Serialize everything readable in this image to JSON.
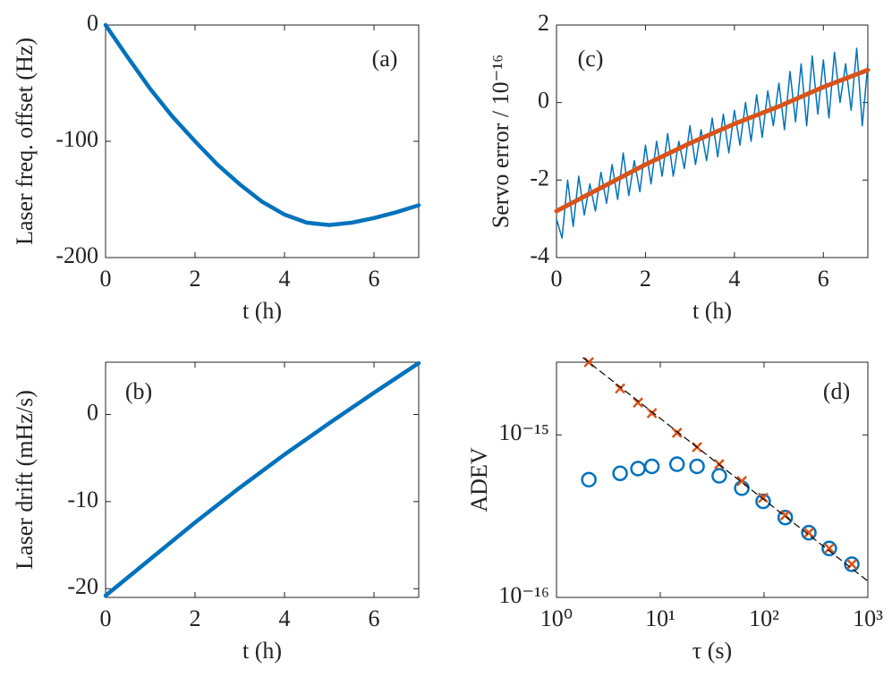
{
  "chart_data": [
    {
      "type": "line",
      "annotation": "(a)",
      "xlabel": "t (h)",
      "ylabel": "Laser freq. offset (Hz)",
      "xlim": [
        0,
        7
      ],
      "ylim": [
        -200,
        0
      ],
      "xticks": [
        0,
        2,
        4,
        6
      ],
      "yticks": [
        -200,
        -100,
        0
      ],
      "series": [
        {
          "color": "#0072bd",
          "x": [
            0,
            0.5,
            1,
            1.5,
            2,
            2.5,
            3,
            3.5,
            4,
            4.5,
            5,
            5.5,
            6,
            6.5,
            7
          ],
          "values": [
            0,
            -28,
            -55,
            -79,
            -100,
            -120,
            -137,
            -152,
            -163,
            -170,
            -172,
            -170,
            -166,
            -161,
            -155
          ]
        }
      ]
    },
    {
      "type": "line",
      "annotation": "(b)",
      "xlabel": "t (h)",
      "ylabel": "Laser drift (mHz/s)",
      "xlim": [
        0,
        7
      ],
      "ylim": [
        -21,
        6
      ],
      "xticks": [
        0,
        2,
        4,
        6
      ],
      "yticks": [
        -20,
        -10,
        0
      ],
      "series": [
        {
          "color": "#0072bd",
          "x": [
            0,
            1,
            2,
            3,
            4,
            5,
            6,
            7
          ],
          "values": [
            -20.8,
            -16.6,
            -12.4,
            -8.4,
            -4.6,
            -1.0,
            2.5,
            5.9
          ]
        }
      ]
    },
    {
      "type": "line",
      "annotation": "(c)",
      "xlabel": "t (h)",
      "ylabel": "Servo error / 10⁻¹⁶",
      "xlim": [
        0,
        7
      ],
      "ylim": [
        -4,
        2
      ],
      "xticks": [
        0,
        2,
        4,
        6
      ],
      "yticks": [
        -4,
        -2,
        0,
        2
      ],
      "series": [
        {
          "color": "#0072bd",
          "width": 1.5,
          "x": [
            0,
            0.125,
            0.25,
            0.375,
            0.5,
            0.625,
            0.75,
            0.875,
            1,
            1.125,
            1.25,
            1.375,
            1.5,
            1.625,
            1.75,
            1.875,
            2,
            2.125,
            2.25,
            2.375,
            2.5,
            2.625,
            2.75,
            2.875,
            3,
            3.125,
            3.25,
            3.375,
            3.5,
            3.625,
            3.75,
            3.875,
            4,
            4.125,
            4.25,
            4.375,
            4.5,
            4.625,
            4.75,
            4.875,
            5,
            5.125,
            5.25,
            5.375,
            5.5,
            5.625,
            5.75,
            5.875,
            6,
            6.125,
            6.25,
            6.375,
            6.5,
            6.625,
            6.75,
            6.875,
            7
          ],
          "values": [
            -3.0,
            -3.5,
            -2.0,
            -3.2,
            -1.9,
            -2.9,
            -2.1,
            -2.8,
            -1.8,
            -2.6,
            -1.6,
            -2.5,
            -1.3,
            -2.4,
            -1.5,
            -2.3,
            -1.1,
            -2.1,
            -1.0,
            -1.9,
            -0.8,
            -1.9,
            -1.0,
            -1.7,
            -0.6,
            -1.6,
            -0.7,
            -1.5,
            -0.4,
            -1.4,
            -0.3,
            -1.3,
            -0.2,
            -1.1,
            0.0,
            -1.0,
            0.2,
            -0.9,
            0.3,
            -0.6,
            0.5,
            -0.7,
            0.8,
            -0.5,
            1.0,
            -0.6,
            1.2,
            -0.3,
            1.1,
            -0.4,
            1.3,
            0.0,
            1.0,
            -0.2,
            1.4,
            -0.6,
            1.0
          ]
        },
        {
          "color": "#d95319",
          "width": 5,
          "x": [
            0,
            1,
            2,
            3,
            4,
            5,
            6,
            7
          ],
          "values": [
            -2.8,
            -2.2,
            -1.6,
            -1.05,
            -0.55,
            -0.1,
            0.4,
            0.84
          ]
        }
      ]
    },
    {
      "type": "scatter",
      "annotation": "(d)",
      "xlabel": "τ (s)",
      "ylabel": "ADEV",
      "xscale": "log",
      "yscale": "log",
      "xlim": [
        1,
        1000
      ],
      "ylim": [
        1e-16,
        2.8e-15
      ],
      "xticks": [
        {
          "value": 1,
          "label": "10⁰"
        },
        {
          "value": 10,
          "label": "10¹"
        },
        {
          "value": 100,
          "label": "10²"
        },
        {
          "value": 1000,
          "label": "10³"
        }
      ],
      "yticks": [
        {
          "value": 1e-16,
          "label": "10⁻¹⁶"
        },
        {
          "value": 1e-15,
          "label": "10⁻¹⁵"
        }
      ],
      "series": [
        {
          "color": "#0072bd",
          "marker": "circle",
          "x": [
            2.05,
            4.1,
            6.1,
            8.3,
            14.5,
            22.6,
            37,
            61,
            98,
            160,
            270,
            425,
            700
          ],
          "values": [
            5.3e-16,
            5.8e-16,
            6.2e-16,
            6.4e-16,
            6.6e-16,
            6.4e-16,
            5.6e-16,
            4.7e-16,
            3.9e-16,
            3.1e-16,
            2.5e-16,
            2e-16,
            1.6e-16
          ]
        },
        {
          "color": "#d95319",
          "marker": "x",
          "x": [
            2.05,
            4.1,
            6.1,
            8.3,
            14.5,
            22.6,
            37,
            61,
            98,
            160,
            270,
            425,
            700
          ],
          "values": [
            2.8e-15,
            1.93e-15,
            1.58e-15,
            1.36e-15,
            1.03e-15,
            8.4e-16,
            6.6e-16,
            5.2e-16,
            4.1e-16,
            3.2e-16,
            2.5e-16,
            2e-16,
            1.6e-16
          ]
        },
        {
          "color": "#000000",
          "marker": "none",
          "dash": true,
          "x": [
            1.8,
            1000
          ],
          "values": [
            2.98e-15,
            1.26e-16
          ]
        }
      ]
    }
  ]
}
